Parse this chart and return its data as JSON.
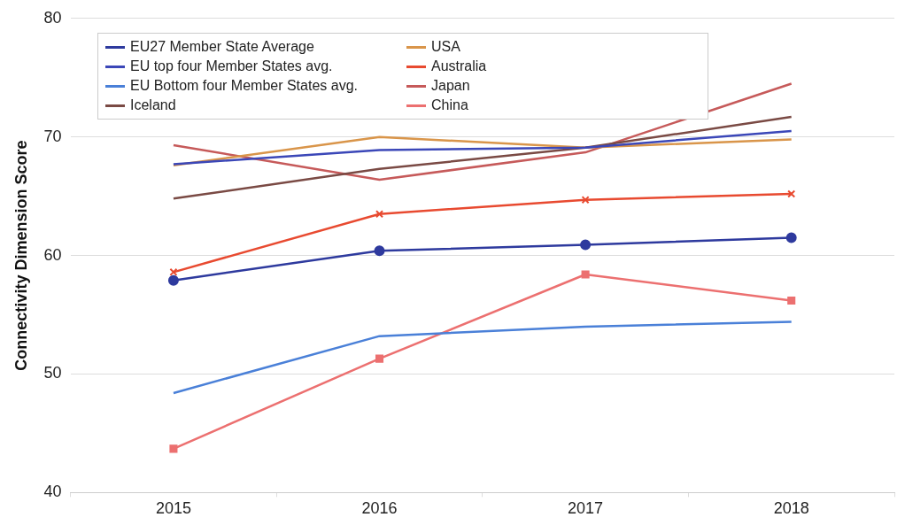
{
  "chart_data": {
    "type": "line",
    "ylabel": "Connectivity Dimension Score",
    "categories": [
      "2015",
      "2016",
      "2017",
      "2018"
    ],
    "ylim": [
      40,
      80
    ],
    "yticks": [
      40,
      50,
      60,
      70,
      80
    ],
    "grid": "y",
    "legend": "top left",
    "line_style": "solid",
    "series": [
      {
        "name": "EU27 Member State Average",
        "color": "#2e3a9e",
        "marker": "circle",
        "values": [
          57.9,
          60.4,
          60.9,
          61.5
        ]
      },
      {
        "name": "EU top four Member States avg.",
        "color": "#3b47b8",
        "marker": "none",
        "values": [
          67.7,
          68.9,
          69.1,
          70.5
        ]
      },
      {
        "name": "EU Bottom four Member States avg.",
        "color": "#4a80d8",
        "marker": "none",
        "values": [
          48.4,
          53.2,
          54.0,
          54.4
        ]
      },
      {
        "name": "Iceland",
        "color": "#7a4a44",
        "marker": "none",
        "values": [
          64.8,
          67.3,
          69.1,
          71.7
        ]
      },
      {
        "name": "USA",
        "color": "#d9954a",
        "marker": "none",
        "values": [
          67.6,
          70.0,
          69.1,
          69.8
        ]
      },
      {
        "name": "Australia",
        "color": "#e84a30",
        "marker": "cross",
        "values": [
          58.6,
          63.5,
          64.7,
          65.2
        ]
      },
      {
        "name": "Japan",
        "color": "#c65a5a",
        "marker": "none",
        "values": [
          69.3,
          66.4,
          68.7,
          74.5
        ]
      },
      {
        "name": "China",
        "color": "#ec7070",
        "marker": "square",
        "values": [
          43.7,
          51.3,
          58.4,
          56.2
        ]
      }
    ]
  }
}
